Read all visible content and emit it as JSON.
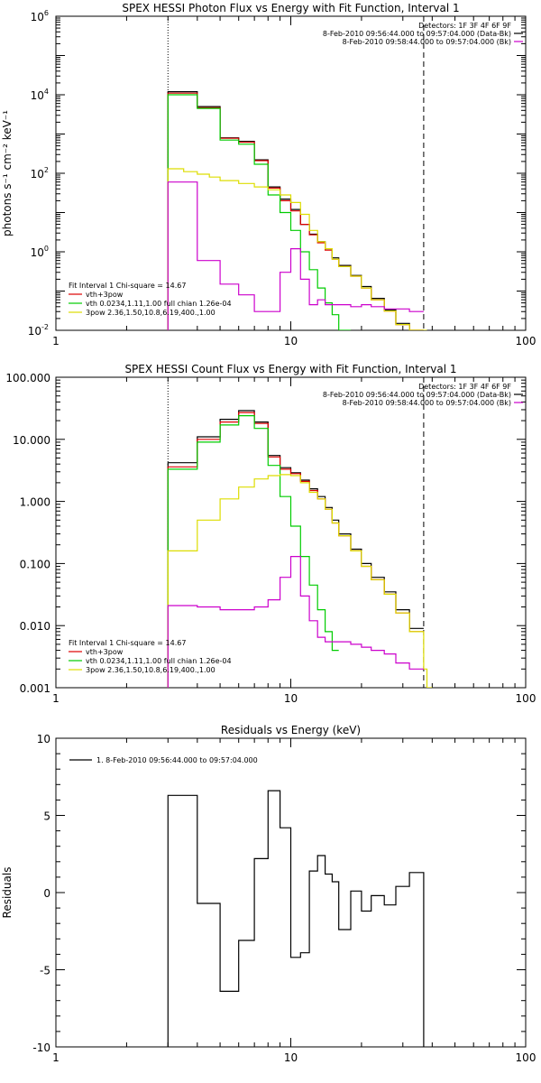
{
  "chart_data": [
    {
      "type": "line",
      "title": "SPEX HESSI Photon Flux vs Energy with Fit Function, Interval 1",
      "xlabel": "",
      "ylabel": "photons s⁻¹ cm⁻² keV⁻¹",
      "xscale": "log",
      "yscale": "log",
      "xlim": [
        1,
        100
      ],
      "ylim": [
        0.01,
        1000000
      ],
      "x_ticks": [
        1,
        10,
        100
      ],
      "x_tick_labels": [
        "1",
        "10",
        "100"
      ],
      "y_ticks": [
        0.01,
        1,
        100,
        10000,
        1000000
      ],
      "y_tick_labels": [
        [
          "10",
          "-2"
        ],
        [
          "10",
          "0"
        ],
        [
          "10",
          "2"
        ],
        [
          "10",
          "4"
        ],
        [
          "10",
          "6"
        ]
      ],
      "vlines": [
        {
          "x": 3.0,
          "style": "dotted"
        },
        {
          "x": 36.8,
          "style": "dashed"
        }
      ],
      "legend_top": [
        {
          "text": "Detectors: 1F 3F 4F 6F 9F"
        },
        {
          "text": "8-Feb-2010 09:56:44.000 to 09:57:04.000 (Data-Bk)",
          "color": "#000000"
        },
        {
          "text": "8-Feb-2010 09:58:44.000 to 09:57:04.000 (Bk)",
          "color": "#cc00cc"
        }
      ],
      "legend_fit": [
        {
          "text": "Fit Interval  1    Chi-square = 14.67"
        },
        {
          "text": "vth+3pow",
          "color": "#dd0000"
        },
        {
          "text": "vth 0.0234,1.11,1.00  full chian 1.26e-04",
          "color": "#00cc00"
        },
        {
          "text": "3pow 2.36,1.50,10.8,6.19,400.,1.00",
          "color": "#dddd00"
        }
      ],
      "series": [
        {
          "name": "Data-Bk",
          "color": "#000000",
          "edges": [
            3,
            4,
            5,
            6,
            7,
            8,
            9,
            10,
            11,
            12,
            13,
            14,
            15,
            16,
            18,
            20,
            22,
            25,
            28,
            32,
            36.8
          ],
          "values": [
            12000,
            5000,
            800,
            650,
            220,
            45,
            22,
            12,
            5,
            2.8,
            1.8,
            1.2,
            0.7,
            0.45,
            0.25,
            0.13,
            0.065,
            0.033,
            0.015,
            0.008
          ]
        },
        {
          "name": "vth+3pow",
          "color": "#dd0000",
          "edges": [
            3,
            4,
            5,
            6,
            7,
            8,
            9,
            10,
            11,
            12,
            13,
            14,
            15,
            16,
            18,
            20,
            22,
            25,
            28,
            32,
            36.8
          ],
          "values": [
            11000,
            4700,
            780,
            620,
            210,
            42,
            20,
            11,
            5,
            2.7,
            1.7,
            1.1,
            0.65,
            0.42,
            0.24,
            0.12,
            0.06,
            0.031,
            0.014,
            0.007
          ]
        },
        {
          "name": "vth",
          "color": "#00cc00",
          "edges": [
            3,
            4,
            5,
            6,
            7,
            8,
            9,
            10,
            11,
            12,
            13,
            14,
            15,
            16,
            18
          ],
          "values": [
            10000,
            4500,
            700,
            550,
            170,
            28,
            10,
            3.5,
            1,
            0.35,
            0.12,
            0.05,
            0.025,
            0.01
          ]
        },
        {
          "name": "3pow",
          "color": "#dddd00",
          "edges": [
            3,
            3.5,
            4,
            4.5,
            5,
            6,
            7,
            8,
            9,
            10,
            11,
            12,
            13,
            14,
            15,
            16,
            18,
            20,
            22,
            25,
            28,
            32,
            36.8,
            38
          ],
          "values": [
            130,
            110,
            95,
            80,
            65,
            55,
            45,
            38,
            28,
            18,
            9,
            3.5,
            1.8,
            1.2,
            0.65,
            0.42,
            0.24,
            0.12,
            0.06,
            0.031,
            0.014,
            0.007,
            0.006
          ]
        },
        {
          "name": "Bk",
          "color": "#cc00cc",
          "edges": [
            3,
            4,
            5,
            6,
            7,
            8,
            9,
            10,
            11,
            12,
            13,
            14,
            16,
            18,
            20,
            22,
            25,
            28,
            32,
            36.8
          ],
          "values": [
            60,
            0.6,
            0.15,
            0.08,
            0.03,
            0.03,
            0.3,
            1.2,
            0.2,
            0.045,
            0.06,
            0.045,
            0.045,
            0.04,
            0.045,
            0.04,
            0.035,
            0.035,
            0.03
          ]
        }
      ]
    },
    {
      "type": "line",
      "title": "SPEX HESSI Count Flux vs Energy with Fit Function, Interval 1",
      "xlabel": "",
      "ylabel": "",
      "xscale": "log",
      "yscale": "log",
      "xlim": [
        1,
        100
      ],
      "ylim": [
        0.001,
        100
      ],
      "x_ticks": [
        1,
        10,
        100
      ],
      "x_tick_labels": [
        "1",
        "10",
        "100"
      ],
      "y_ticks": [
        0.001,
        0.01,
        0.1,
        1,
        10,
        100
      ],
      "y_tick_labels": [
        [
          "0.001",
          ""
        ],
        [
          "0.010",
          ""
        ],
        [
          "0.100",
          ""
        ],
        [
          "1.000",
          ""
        ],
        [
          "10.000",
          ""
        ],
        [
          "100.000",
          ""
        ]
      ],
      "vlines": [
        {
          "x": 3.0,
          "style": "dotted"
        },
        {
          "x": 36.8,
          "style": "dashed"
        }
      ],
      "legend_top": [
        {
          "text": "Detectors: 1F 3F 4F 6F 9F"
        },
        {
          "text": "8-Feb-2010 09:56:44.000 to 09:57:04.000 (Data-Bk)",
          "color": "#000000"
        },
        {
          "text": "8-Feb-2010 09:58:44.000 to 09:57:04.000 (Bk)",
          "color": "#cc00cc"
        }
      ],
      "legend_fit": [
        {
          "text": "Fit Interval  1    Chi-square = 14.67"
        },
        {
          "text": "vth+3pow",
          "color": "#dd0000"
        },
        {
          "text": "vth 0.0234,1.11,1.00  full chian 1.26e-04",
          "color": "#00cc00"
        },
        {
          "text": "3pow 2.36,1.50,10.8,6.19,400.,1.00",
          "color": "#dddd00"
        }
      ],
      "series": [
        {
          "name": "Data-Bk",
          "color": "#000000",
          "edges": [
            3,
            4,
            5,
            6,
            7,
            8,
            9,
            10,
            11,
            12,
            13,
            14,
            15,
            16,
            18,
            20,
            22,
            25,
            28,
            32,
            36.8
          ],
          "values": [
            4.2,
            11,
            21,
            29,
            19,
            5.5,
            3.5,
            2.9,
            2.2,
            1.6,
            1.2,
            0.8,
            0.5,
            0.3,
            0.17,
            0.1,
            0.06,
            0.035,
            0.018,
            0.009
          ]
        },
        {
          "name": "vth+3pow",
          "color": "#dd0000",
          "edges": [
            3,
            4,
            5,
            6,
            7,
            8,
            9,
            10,
            11,
            12,
            13,
            14,
            15,
            16,
            18,
            20,
            22,
            25,
            28,
            32,
            36.8
          ],
          "values": [
            3.6,
            10,
            19,
            27,
            18,
            5.2,
            3.3,
            2.8,
            2.1,
            1.5,
            1.1,
            0.75,
            0.45,
            0.28,
            0.16,
            0.09,
            0.055,
            0.032,
            0.016,
            0.008
          ]
        },
        {
          "name": "vth",
          "color": "#00cc00",
          "edges": [
            3,
            4,
            5,
            6,
            7,
            8,
            9,
            10,
            11,
            12,
            13,
            14,
            15,
            16
          ],
          "values": [
            3.3,
            9,
            17,
            24,
            15,
            3.8,
            1.2,
            0.4,
            0.13,
            0.045,
            0.018,
            0.008,
            0.004
          ]
        },
        {
          "name": "3pow",
          "color": "#dddd00",
          "edges": [
            3,
            4,
            5,
            6,
            7,
            8,
            9,
            10,
            11,
            12,
            13,
            14,
            15,
            16,
            18,
            20,
            22,
            25,
            28,
            32,
            36.8,
            38,
            40
          ],
          "values": [
            0.16,
            0.5,
            1.1,
            1.7,
            2.3,
            2.6,
            2.7,
            2.6,
            2.0,
            1.4,
            1.1,
            0.75,
            0.45,
            0.28,
            0.16,
            0.09,
            0.055,
            0.032,
            0.016,
            0.008,
            0.002,
            0.001
          ]
        },
        {
          "name": "Bk",
          "color": "#cc00cc",
          "edges": [
            3,
            4,
            5,
            6,
            7,
            8,
            9,
            10,
            11,
            12,
            13,
            14,
            16,
            18,
            20,
            22,
            25,
            28,
            32,
            36.8
          ],
          "values": [
            0.021,
            0.02,
            0.018,
            0.018,
            0.02,
            0.026,
            0.06,
            0.13,
            0.03,
            0.012,
            0.0065,
            0.0055,
            0.0055,
            0.005,
            0.0045,
            0.004,
            0.0035,
            0.0025,
            0.002
          ]
        }
      ]
    },
    {
      "type": "line",
      "title": "Residuals vs Energy (keV)",
      "xlabel": "",
      "ylabel": "Residuals",
      "xscale": "log",
      "yscale": "linear",
      "xlim": [
        1,
        100
      ],
      "ylim": [
        -10,
        10
      ],
      "x_ticks": [
        1,
        10,
        100
      ],
      "x_tick_labels": [
        "1",
        "10",
        "100"
      ],
      "y_ticks": [
        -10,
        -5,
        0,
        5,
        10
      ],
      "y_tick_labels": [
        [
          "-10",
          ""
        ],
        [
          "-5",
          ""
        ],
        [
          "0",
          ""
        ],
        [
          "5",
          ""
        ],
        [
          "10",
          ""
        ]
      ],
      "legend_top": [
        {
          "text": "1.  8-Feb-2010 09:56:44.000 to 09:57:04.000",
          "color": "#000000"
        }
      ],
      "series": [
        {
          "name": "1.",
          "color": "#000000",
          "edges": [
            3,
            4,
            5,
            6,
            7,
            8,
            9,
            10,
            11,
            12,
            13,
            14,
            15,
            16,
            18,
            20,
            22,
            25,
            28,
            32,
            36.8
          ],
          "values": [
            6.3,
            -0.7,
            -6.4,
            -3.1,
            2.2,
            6.6,
            4.2,
            -4.2,
            -3.9,
            1.4,
            2.4,
            1.2,
            0.7,
            -2.4,
            0.1,
            -1.2,
            -0.2,
            -0.8,
            0.4,
            1.3
          ]
        }
      ]
    }
  ]
}
